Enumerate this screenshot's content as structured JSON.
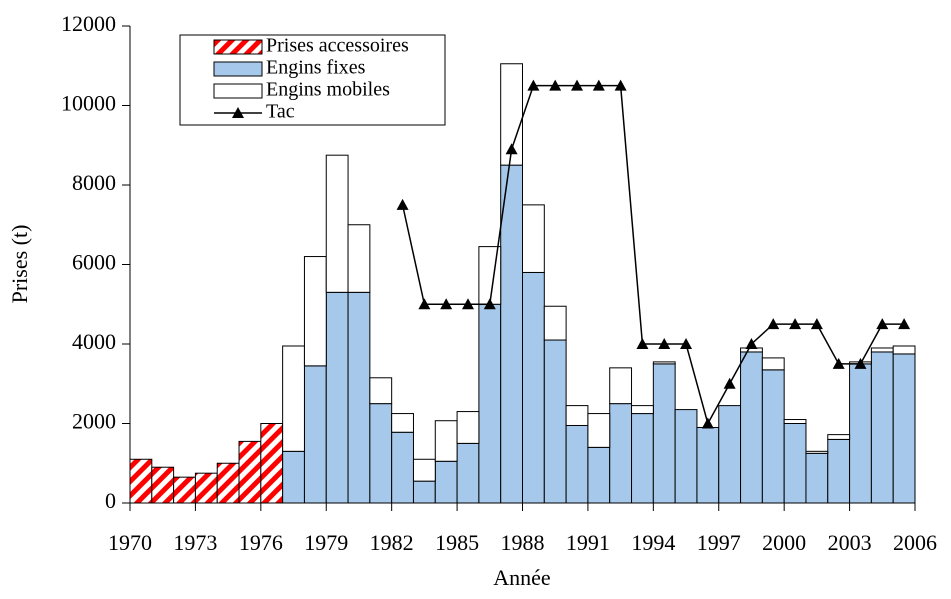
{
  "chart_data": {
    "type": "bar",
    "x_label": "Année",
    "y_label": "Prises (t)",
    "x": [
      1970,
      1971,
      1972,
      1973,
      1974,
      1975,
      1976,
      1977,
      1978,
      1979,
      1980,
      1981,
      1982,
      1983,
      1984,
      1985,
      1986,
      1987,
      1988,
      1989,
      1990,
      1991,
      1992,
      1993,
      1994,
      1995,
      1996,
      1997,
      1998,
      1999,
      2000,
      2001,
      2002,
      2003,
      2004,
      2005
    ],
    "xlim": [
      1970,
      2006
    ],
    "xticks": [
      1970,
      1973,
      1976,
      1979,
      1982,
      1985,
      1988,
      1991,
      1994,
      1997,
      2000,
      2003,
      2006
    ],
    "ylim": [
      0,
      12000
    ],
    "yticks": [
      0,
      2000,
      4000,
      6000,
      8000,
      10000,
      12000
    ],
    "stacked": true,
    "legend": "top-left",
    "series": [
      {
        "name": "Prises accessoires",
        "color": "#ff0000",
        "pattern": "hatch",
        "values": [
          1100,
          900,
          650,
          750,
          1000,
          1550,
          2000,
          null,
          null,
          null,
          null,
          null,
          null,
          null,
          null,
          null,
          null,
          null,
          null,
          null,
          null,
          null,
          null,
          null,
          null,
          null,
          null,
          null,
          null,
          null,
          null,
          null,
          null,
          null,
          null,
          null
        ]
      },
      {
        "name": "Engins fixes",
        "color": "#a6c8ea",
        "values": [
          null,
          null,
          null,
          null,
          null,
          null,
          null,
          1300,
          3450,
          5300,
          5300,
          2500,
          1780,
          550,
          1050,
          1500,
          5000,
          8500,
          5800,
          4100,
          1950,
          1400,
          2500,
          2250,
          3500,
          2350,
          1900,
          2450,
          3800,
          3350,
          2000,
          1250,
          1600,
          3500,
          3800,
          3750
        ]
      },
      {
        "name": "Engins mobiles",
        "color": "#ffffff",
        "values": [
          null,
          null,
          null,
          null,
          null,
          null,
          null,
          2650,
          2750,
          3450,
          1700,
          650,
          470,
          550,
          1020,
          800,
          1450,
          2550,
          1700,
          850,
          500,
          850,
          900,
          200,
          50,
          0,
          0,
          0,
          100,
          300,
          100,
          50,
          120,
          50,
          100,
          200
        ]
      },
      {
        "name": "Tac",
        "type": "line",
        "color": "#000000",
        "marker": "triangle",
        "values": [
          null,
          null,
          null,
          null,
          null,
          null,
          null,
          null,
          null,
          null,
          null,
          null,
          7500,
          5000,
          5000,
          5000,
          5000,
          8900,
          10500,
          10500,
          10500,
          10500,
          10500,
          4000,
          4000,
          4000,
          2000,
          3000,
          4000,
          4500,
          4500,
          4500,
          3500,
          3500,
          4500,
          4500
        ]
      }
    ]
  }
}
